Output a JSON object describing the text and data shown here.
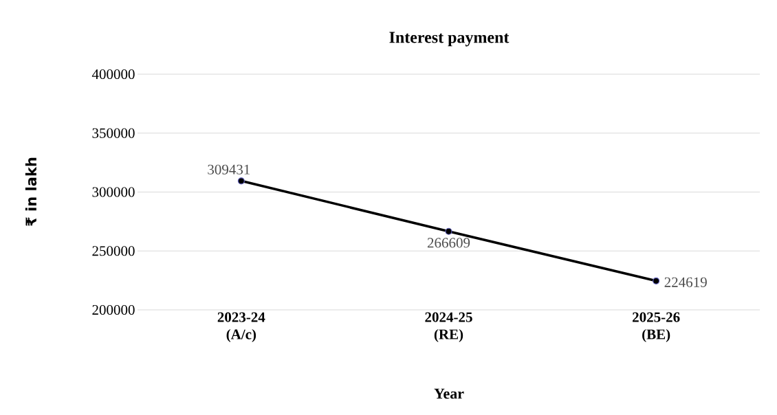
{
  "chart_data": {
    "type": "line",
    "title": "Interest payment",
    "xlabel": "Year",
    "ylabel": "₹ in lakh",
    "categories": [
      "2023-24 (A/c)",
      "2024-25 (RE)",
      "2025-26 (BE)"
    ],
    "series": [
      {
        "color": "#000000",
        "values": [
          309431,
          266609,
          224619
        ]
      }
    ],
    "ylim": [
      200000,
      400000
    ],
    "yticks": [
      200000,
      250000,
      300000,
      350000,
      400000
    ],
    "grid": "y",
    "marker": "circle",
    "line_style": "solid",
    "data_labels": true
  }
}
